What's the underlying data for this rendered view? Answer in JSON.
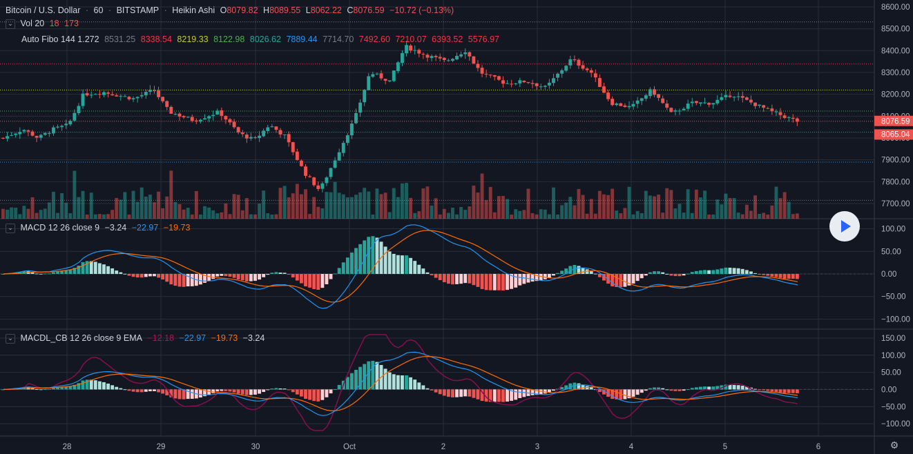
{
  "symbol": {
    "pair": "Bitcoin / U.S. Dollar",
    "interval": "60",
    "exchange": "BITSTAMP",
    "style": "Heikin Ashi",
    "o_label": "O",
    "o_value": "8079.82",
    "h_label": "H",
    "h_value": "8089.55",
    "l_label": "L",
    "l_value": "8062.22",
    "c_label": "C",
    "c_value": "8076.59",
    "change": "−10.72 (−0.13%)"
  },
  "vol": {
    "name": "Vol 20",
    "v1": "18",
    "v2": "173"
  },
  "fibo": {
    "name": "Auto Fibo 144 1.272",
    "levels": [
      {
        "text": "8531.25",
        "value": 8531.25,
        "color": "#787b86"
      },
      {
        "text": "8338.54",
        "value": 8338.54,
        "color": "#f23645"
      },
      {
        "text": "8219.33",
        "value": 8219.33,
        "color": "#c4c92b"
      },
      {
        "text": "8122.98",
        "value": 8122.98,
        "color": "#4caf50"
      },
      {
        "text": "8026.62",
        "value": 8026.62,
        "color": "#26a69a"
      },
      {
        "text": "7889.44",
        "value": 7889.44,
        "color": "#2196f3"
      },
      {
        "text": "7714.70",
        "value": 7714.7,
        "color": "#787b86"
      },
      {
        "text": "7492.60",
        "value": 7492.6,
        "color": "#f23645"
      },
      {
        "text": "7210.07",
        "value": 7210.07,
        "color": "#f23645"
      },
      {
        "text": "6393.52",
        "value": 6393.52,
        "color": "#f23645"
      },
      {
        "text": "5576.97",
        "value": 5576.97,
        "color": "#f23645"
      }
    ]
  },
  "macd": {
    "name": "MACD 12 26 close 9",
    "v1": "−3.24",
    "v2": "−22.97",
    "v3": "−19.73"
  },
  "macdl": {
    "name": "MACDL_CB 12 26 close 9 EMA",
    "v1": "−12.18",
    "v2": "−22.97",
    "v3": "−19.73",
    "v4": "−3.24"
  },
  "price_axis": {
    "ticks": [
      "8600.00",
      "8500.00",
      "8400.00",
      "8300.00",
      "8200.00",
      "8100.00",
      "8000.00",
      "7900.00",
      "7800.00",
      "7700.00"
    ],
    "last_price": "8076.59",
    "fibo_price": "8065.04"
  },
  "macd_axis": {
    "ticks": [
      "100.00",
      "50.00",
      "0.00",
      "−50.00",
      "−100.00"
    ]
  },
  "macdl_axis": {
    "ticks": [
      "150.00",
      "100.00",
      "50.00",
      "0.00",
      "−50.00",
      "−100.00"
    ]
  },
  "time_axis": {
    "labels": [
      "28",
      "29",
      "30",
      "Oct",
      "2",
      "3",
      "4",
      "5",
      "6"
    ]
  },
  "colors": {
    "up": "#26a69a",
    "down": "#ef5350",
    "background": "#131722",
    "grid": "#2a2e39",
    "macd": "#2196f3",
    "signal": "#ff6d00",
    "macdl": "#880e4f"
  },
  "chart_data": {
    "type": "candlestick",
    "title": "Bitcoin / U.S. Dollar · 60 · BITSTAMP · Heikin Ashi",
    "x_labels": [
      "28",
      "29",
      "30",
      "Oct",
      "2",
      "3",
      "4",
      "5",
      "6"
    ],
    "ylim": [
      7640,
      8630
    ],
    "close_path": [
      [
        0,
        8000
      ],
      [
        0.04,
        8040
      ],
      [
        0.07,
        8000
      ],
      [
        0.1,
        8040
      ],
      [
        0.13,
        8060
      ],
      [
        0.16,
        8200
      ],
      [
        0.2,
        8210
      ],
      [
        0.26,
        8180
      ],
      [
        0.3,
        8220
      ],
      [
        0.33,
        8120
      ],
      [
        0.38,
        8080
      ],
      [
        0.43,
        8120
      ],
      [
        0.47,
        8020
      ],
      [
        0.5,
        7990
      ],
      [
        0.53,
        8060
      ],
      [
        0.56,
        8010
      ],
      [
        0.6,
        7840
      ],
      [
        0.63,
        7760
      ],
      [
        0.66,
        7900
      ],
      [
        0.7,
        8090
      ],
      [
        0.73,
        8300
      ],
      [
        0.77,
        8260
      ],
      [
        0.8,
        8420
      ],
      [
        0.84,
        8380
      ],
      [
        0.88,
        8350
      ],
      [
        0.92,
        8400
      ],
      [
        0.95,
        8300
      ],
      [
        1.0,
        8250
      ],
      [
        1.04,
        8260
      ],
      [
        1.08,
        8230
      ],
      [
        1.13,
        8360
      ],
      [
        1.17,
        8300
      ],
      [
        1.21,
        8160
      ],
      [
        1.25,
        8140
      ],
      [
        1.29,
        8220
      ],
      [
        1.33,
        8110
      ],
      [
        1.37,
        8160
      ],
      [
        1.41,
        8160
      ],
      [
        1.45,
        8200
      ],
      [
        1.49,
        8160
      ],
      [
        1.53,
        8120
      ],
      [
        1.57,
        8085
      ],
      [
        1.58,
        8076.59
      ]
    ],
    "fibo_lines": [
      8531.25,
      8338.54,
      8219.33,
      8122.98,
      8026.62,
      7889.44,
      7714.7
    ],
    "last_close": 8076.59,
    "macd_ylim": [
      -110,
      110
    ],
    "macdl_ylim": [
      -120,
      160
    ]
  }
}
